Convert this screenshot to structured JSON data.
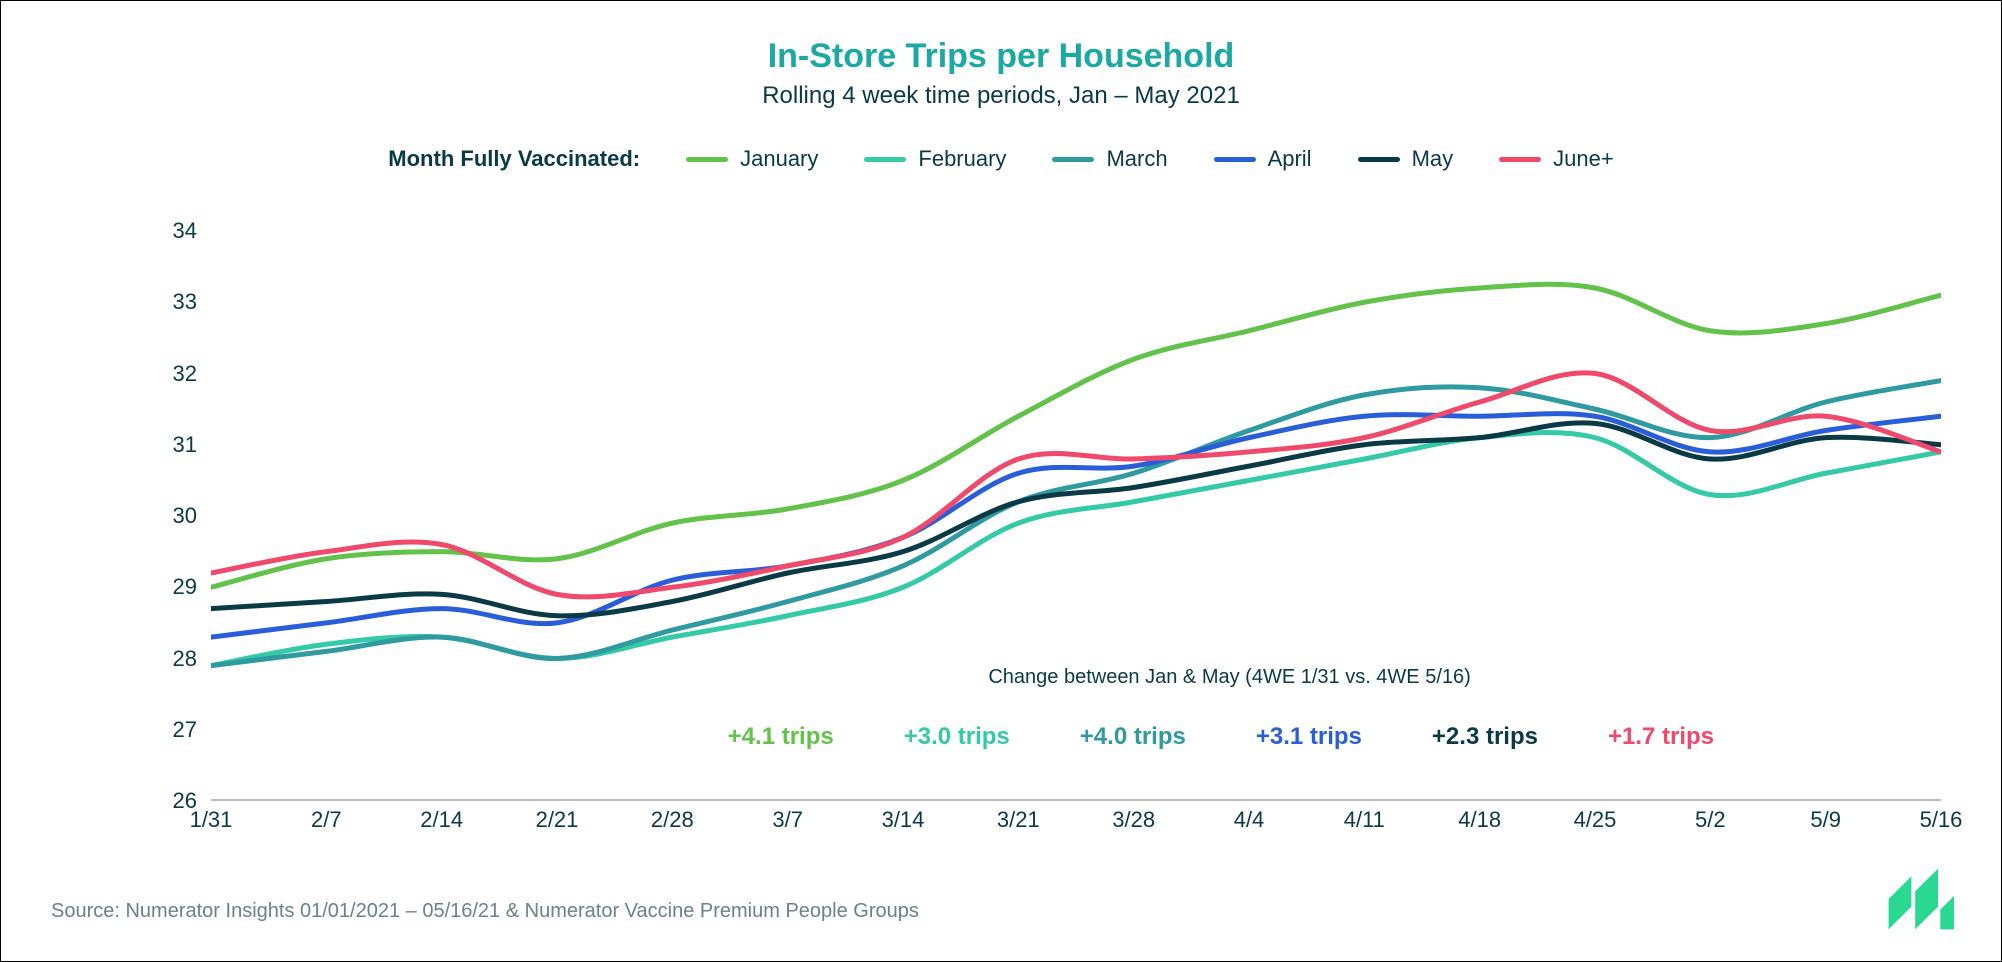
{
  "title": "In-Store Trips per Household",
  "subtitle": "Rolling 4 week time periods, Jan – May 2021",
  "legend_label": "Month Fully Vaccinated:",
  "colors": {
    "january": "#62c24a",
    "february": "#34c9a7",
    "march": "#2f9aa0",
    "april": "#2a5ed9",
    "may": "#0b3a47",
    "june": "#ef4a6b",
    "title": "#1ca9a4",
    "text": "#0b3a47",
    "axis_line": "#bfbfbf",
    "background": "#ffffff",
    "source": "#6b8289"
  },
  "legend_items": [
    {
      "key": "january",
      "label": "January"
    },
    {
      "key": "february",
      "label": "February"
    },
    {
      "key": "march",
      "label": "March"
    },
    {
      "key": "april",
      "label": "April"
    },
    {
      "key": "may",
      "label": "May"
    },
    {
      "key": "june",
      "label": "June+"
    }
  ],
  "chart": {
    "type": "line",
    "ylim": [
      26,
      34
    ],
    "ytick_step": 1,
    "yticks": [
      "26",
      "27",
      "28",
      "29",
      "30",
      "31",
      "32",
      "33",
      "34"
    ],
    "x_labels": [
      "1/31",
      "2/7",
      "2/14",
      "2/21",
      "2/28",
      "3/7",
      "3/14",
      "3/21",
      "3/28",
      "4/4",
      "4/11",
      "4/18",
      "4/25",
      "5/2",
      "5/9",
      "5/16"
    ],
    "line_width": 5,
    "title_fontsize": 34,
    "subtitle_fontsize": 24,
    "axis_fontsize": 22,
    "grid": false,
    "series": {
      "january": [
        29.0,
        29.4,
        29.5,
        29.4,
        29.9,
        30.1,
        30.5,
        31.4,
        32.2,
        32.6,
        33.0,
        33.2,
        33.2,
        32.6,
        32.7,
        33.1
      ],
      "february": [
        27.9,
        28.2,
        28.3,
        28.0,
        28.3,
        28.6,
        29.0,
        29.9,
        30.2,
        30.5,
        30.8,
        31.1,
        31.1,
        30.3,
        30.6,
        30.9
      ],
      "march": [
        27.9,
        28.1,
        28.3,
        28.0,
        28.4,
        28.8,
        29.3,
        30.2,
        30.6,
        31.2,
        31.7,
        31.8,
        31.5,
        31.1,
        31.6,
        31.9
      ],
      "april": [
        28.3,
        28.5,
        28.7,
        28.5,
        29.1,
        29.3,
        29.7,
        30.6,
        30.7,
        31.1,
        31.4,
        31.4,
        31.4,
        30.9,
        31.2,
        31.4
      ],
      "may": [
        28.7,
        28.8,
        28.9,
        28.6,
        28.8,
        29.2,
        29.5,
        30.2,
        30.4,
        30.7,
        31.0,
        31.1,
        31.3,
        30.8,
        31.1,
        31.0
      ],
      "june": [
        29.2,
        29.5,
        29.6,
        28.9,
        29.0,
        29.3,
        29.7,
        30.8,
        30.8,
        30.9,
        31.1,
        31.6,
        32.0,
        31.2,
        31.4,
        30.9
      ]
    }
  },
  "change_label": "Change between Jan & May (4WE 1/31 vs. 4WE 5/16)",
  "deltas": [
    {
      "key": "january",
      "text": "+4.1 trips"
    },
    {
      "key": "february",
      "text": "+3.0 trips"
    },
    {
      "key": "march",
      "text": "+4.0 trips"
    },
    {
      "key": "april",
      "text": "+3.1 trips"
    },
    {
      "key": "may",
      "text": "+2.3 trips"
    },
    {
      "key": "june",
      "text": "+1.7 trips"
    }
  ],
  "source": "Source: Numerator Insights 01/01/2021 – 05/16/21 & Numerator Vaccine Premium People Groups",
  "logo_color": "#2bd891"
}
